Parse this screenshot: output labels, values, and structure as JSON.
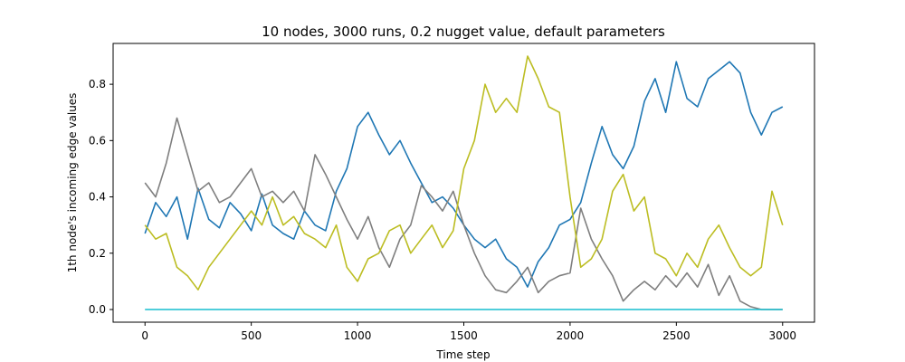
{
  "chart_data": {
    "type": "line",
    "title": "10 nodes, 3000 runs, 0.2 nugget value, default parameters",
    "xlabel": "Time step",
    "ylabel": "1th node's incoming edge values",
    "xlim": [
      -150,
      3150
    ],
    "ylim": [
      -0.045,
      0.945
    ],
    "xticks": [
      0,
      500,
      1000,
      1500,
      2000,
      2500,
      3000
    ],
    "yticks": [
      0.0,
      0.2,
      0.4,
      0.6,
      0.8
    ],
    "ytick_labels": [
      "0.0",
      "0.2",
      "0.4",
      "0.6",
      "0.8"
    ],
    "grid": false,
    "series": [
      {
        "color": "#1f77b4",
        "x": [
          0,
          50,
          100,
          150,
          200,
          250,
          300,
          350,
          400,
          450,
          500,
          550,
          600,
          650,
          700,
          750,
          800,
          850,
          900,
          950,
          1000,
          1050,
          1100,
          1150,
          1200,
          1250,
          1300,
          1350,
          1400,
          1450,
          1500,
          1550,
          1600,
          1650,
          1700,
          1750,
          1800,
          1850,
          1900,
          1950,
          2000,
          2050,
          2100,
          2150,
          2200,
          2250,
          2300,
          2350,
          2400,
          2450,
          2500,
          2550,
          2600,
          2650,
          2700,
          2750,
          2800,
          2850,
          2900,
          2950,
          3000
        ],
        "y": [
          0.27,
          0.38,
          0.33,
          0.4,
          0.25,
          0.43,
          0.32,
          0.29,
          0.38,
          0.34,
          0.28,
          0.41,
          0.3,
          0.27,
          0.25,
          0.35,
          0.3,
          0.28,
          0.42,
          0.5,
          0.65,
          0.7,
          0.62,
          0.55,
          0.6,
          0.52,
          0.45,
          0.38,
          0.4,
          0.36,
          0.3,
          0.25,
          0.22,
          0.25,
          0.18,
          0.15,
          0.08,
          0.17,
          0.22,
          0.3,
          0.32,
          0.38,
          0.52,
          0.65,
          0.55,
          0.5,
          0.58,
          0.74,
          0.82,
          0.7,
          0.88,
          0.75,
          0.72,
          0.82,
          0.85,
          0.88,
          0.84,
          0.7,
          0.62,
          0.7,
          0.72
        ]
      },
      {
        "color": "#7f7f7f",
        "x": [
          0,
          50,
          100,
          150,
          200,
          250,
          300,
          350,
          400,
          450,
          500,
          550,
          600,
          650,
          700,
          750,
          800,
          850,
          900,
          950,
          1000,
          1050,
          1100,
          1150,
          1200,
          1250,
          1300,
          1350,
          1400,
          1450,
          1500,
          1550,
          1600,
          1650,
          1700,
          1750,
          1800,
          1850,
          1900,
          1950,
          2000,
          2050,
          2100,
          2150,
          2200,
          2250,
          2300,
          2350,
          2400,
          2450,
          2500,
          2550,
          2600,
          2650,
          2700,
          2750,
          2800,
          2850,
          2900,
          2950,
          3000
        ],
        "y": [
          0.45,
          0.4,
          0.52,
          0.68,
          0.55,
          0.42,
          0.45,
          0.38,
          0.4,
          0.45,
          0.5,
          0.4,
          0.42,
          0.38,
          0.42,
          0.35,
          0.55,
          0.48,
          0.4,
          0.32,
          0.25,
          0.33,
          0.22,
          0.15,
          0.25,
          0.3,
          0.44,
          0.4,
          0.35,
          0.42,
          0.3,
          0.2,
          0.12,
          0.07,
          0.06,
          0.1,
          0.15,
          0.06,
          0.1,
          0.12,
          0.13,
          0.36,
          0.25,
          0.18,
          0.12,
          0.03,
          0.07,
          0.1,
          0.07,
          0.12,
          0.08,
          0.13,
          0.08,
          0.16,
          0.05,
          0.12,
          0.03,
          0.01,
          0.0,
          0.0,
          0.0
        ]
      },
      {
        "color": "#bcbd22",
        "x": [
          0,
          50,
          100,
          150,
          200,
          250,
          300,
          350,
          400,
          450,
          500,
          550,
          600,
          650,
          700,
          750,
          800,
          850,
          900,
          950,
          1000,
          1050,
          1100,
          1150,
          1200,
          1250,
          1300,
          1350,
          1400,
          1450,
          1500,
          1550,
          1600,
          1650,
          1700,
          1750,
          1800,
          1850,
          1900,
          1950,
          2000,
          2050,
          2100,
          2150,
          2200,
          2250,
          2300,
          2350,
          2400,
          2450,
          2500,
          2550,
          2600,
          2650,
          2700,
          2750,
          2800,
          2850,
          2900,
          2950,
          3000
        ],
        "y": [
          0.3,
          0.25,
          0.27,
          0.15,
          0.12,
          0.07,
          0.15,
          0.2,
          0.25,
          0.3,
          0.35,
          0.3,
          0.4,
          0.3,
          0.33,
          0.27,
          0.25,
          0.22,
          0.3,
          0.15,
          0.1,
          0.18,
          0.2,
          0.28,
          0.3,
          0.2,
          0.25,
          0.3,
          0.22,
          0.28,
          0.5,
          0.6,
          0.8,
          0.7,
          0.75,
          0.7,
          0.9,
          0.82,
          0.72,
          0.7,
          0.4,
          0.15,
          0.18,
          0.25,
          0.42,
          0.48,
          0.35,
          0.4,
          0.2,
          0.18,
          0.12,
          0.2,
          0.15,
          0.25,
          0.3,
          0.22,
          0.15,
          0.12,
          0.15,
          0.42,
          0.3
        ]
      },
      {
        "color": "#17becf",
        "x": [
          0,
          3000
        ],
        "y": [
          0.0,
          0.0
        ]
      }
    ]
  }
}
